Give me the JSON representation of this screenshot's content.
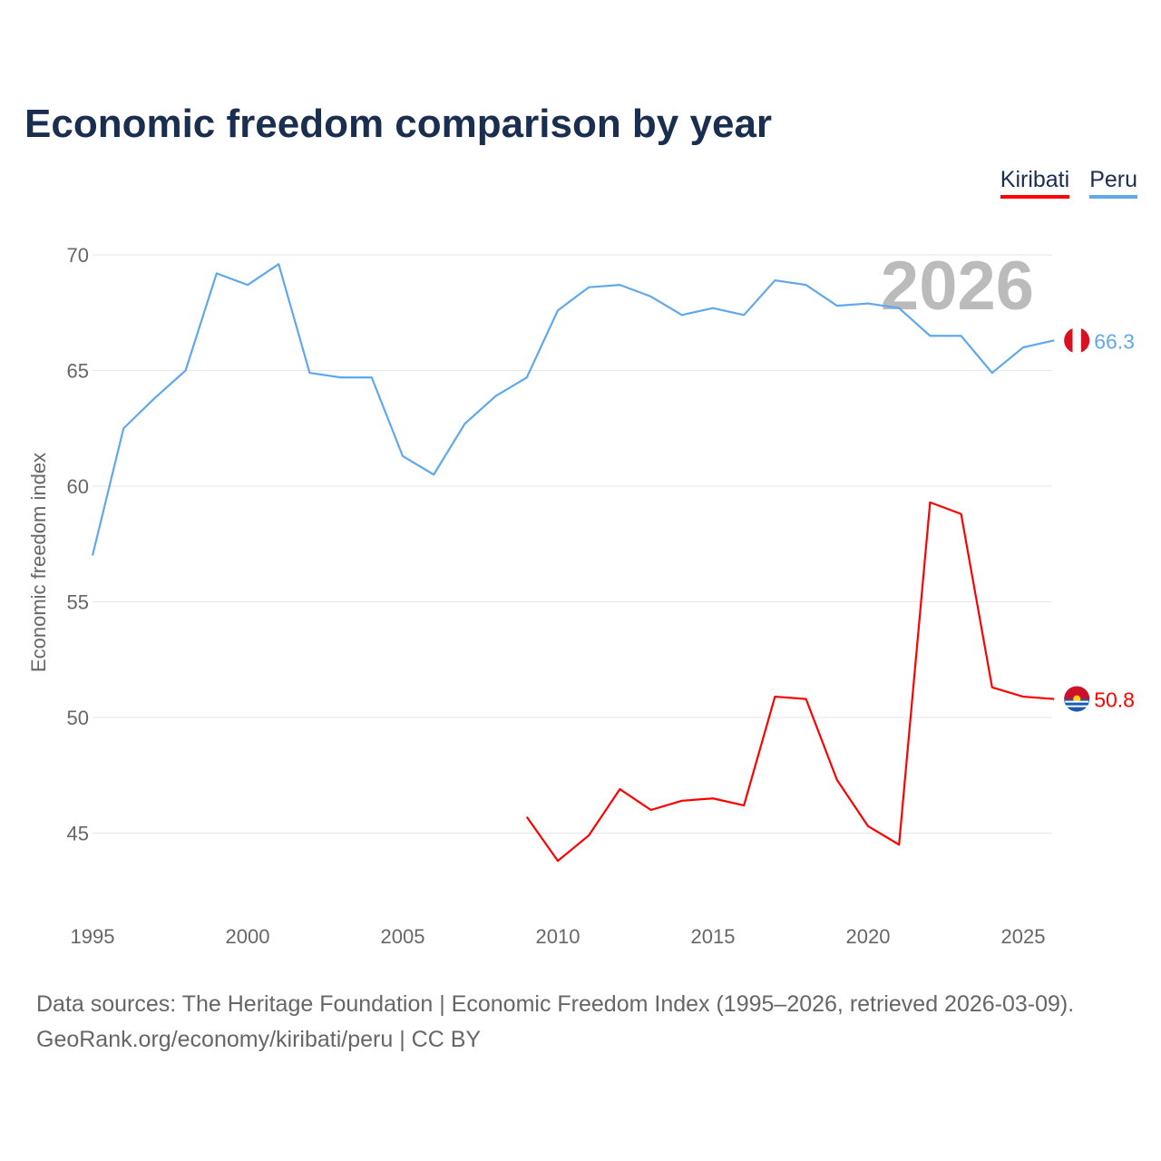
{
  "chart_data": {
    "type": "line",
    "title": "Economic freedom comparison by year",
    "xlabel": "",
    "ylabel": "Economic freedom index",
    "xlim": [
      1995,
      2026
    ],
    "ylim": [
      42,
      71
    ],
    "yticks": [
      45,
      50,
      55,
      60,
      65,
      70
    ],
    "xticks": [
      1995,
      2000,
      2005,
      2010,
      2015,
      2020,
      2025
    ],
    "grid": true,
    "legend_position": "top-right",
    "watermark_year": "2026",
    "series": [
      {
        "name": "Kiribati",
        "color": "#ff0000",
        "end_label": "50.8",
        "x": [
          2009,
          2010,
          2011,
          2012,
          2013,
          2014,
          2015,
          2016,
          2017,
          2018,
          2019,
          2020,
          2021,
          2022,
          2023,
          2024,
          2025,
          2026
        ],
        "values": [
          45.7,
          43.8,
          44.9,
          46.9,
          46.0,
          46.4,
          46.5,
          46.2,
          50.9,
          50.8,
          47.3,
          45.3,
          44.5,
          59.3,
          58.8,
          51.3,
          50.9,
          50.8
        ]
      },
      {
        "name": "Peru",
        "color": "#5fa8ee",
        "end_label": "66.3",
        "x": [
          1995,
          1996,
          1997,
          1998,
          1999,
          2000,
          2001,
          2002,
          2003,
          2004,
          2005,
          2006,
          2007,
          2008,
          2009,
          2010,
          2011,
          2012,
          2013,
          2014,
          2015,
          2016,
          2017,
          2018,
          2019,
          2020,
          2021,
          2022,
          2023,
          2024,
          2025,
          2026
        ],
        "values": [
          57.0,
          62.5,
          63.8,
          65.0,
          69.2,
          68.7,
          69.6,
          64.9,
          64.7,
          64.7,
          61.3,
          60.5,
          62.7,
          63.9,
          64.7,
          67.6,
          68.6,
          68.7,
          68.2,
          67.4,
          67.7,
          67.4,
          68.9,
          68.7,
          67.8,
          67.9,
          67.7,
          66.5,
          66.5,
          64.9,
          66.0,
          66.3
        ]
      }
    ]
  },
  "source_line1": "Data sources: The Heritage Foundation | Economic Freedom Index (1995–2026, retrieved 2026-03-09).",
  "source_line2": "GeoRank.org/economy/kiribati/peru | CC BY"
}
